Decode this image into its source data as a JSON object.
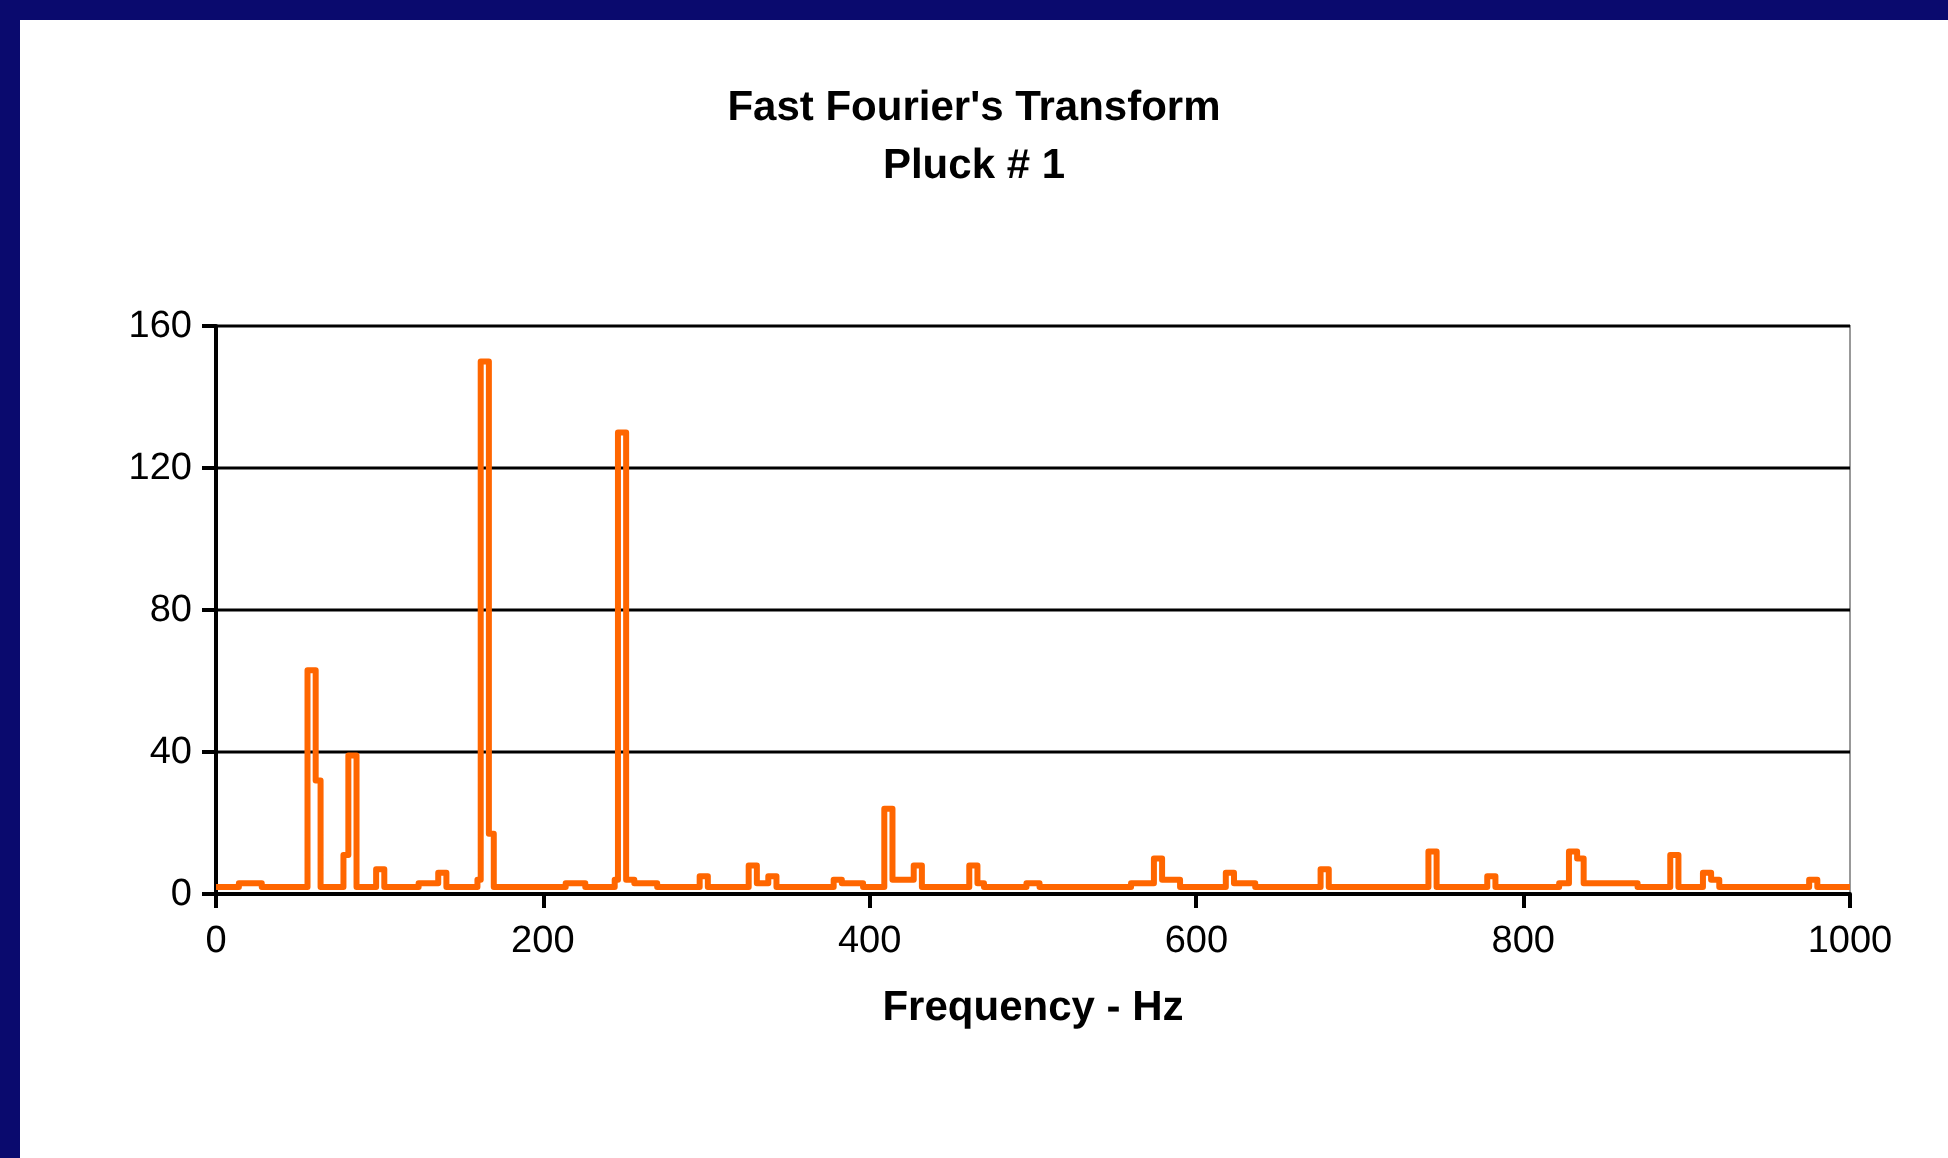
{
  "chart_data": {
    "type": "step",
    "title": "Fast Fourier's Transform",
    "subtitle": "Pluck # 1",
    "xlabel": "Frequency - Hz",
    "x": [
      0,
      14,
      28,
      56,
      61,
      64,
      78,
      81,
      86,
      98,
      103,
      124,
      136,
      141,
      160,
      162,
      167,
      170,
      214,
      226,
      244,
      246,
      251,
      256,
      270,
      296,
      301,
      326,
      331,
      338,
      343,
      378,
      383,
      396,
      409,
      414,
      427,
      432,
      461,
      466,
      470,
      496,
      504,
      560,
      574,
      579,
      590,
      618,
      623,
      636,
      676,
      681,
      742,
      747,
      778,
      783,
      822,
      828,
      833,
      837,
      870,
      890,
      895,
      910,
      915,
      920,
      975,
      980,
      1000
    ],
    "series": [
      {
        "color": "#ff6600",
        "values": [
          2,
          3,
          2,
          63,
          32,
          2,
          11,
          39,
          2,
          7,
          2,
          3,
          6,
          2,
          4,
          150,
          17,
          2,
          3,
          2,
          4,
          130,
          4,
          3,
          2,
          5,
          2,
          8,
          3,
          5,
          2,
          4,
          3,
          2,
          24,
          4,
          8,
          2,
          8,
          3,
          2,
          3,
          2,
          3,
          10,
          4,
          2,
          6,
          3,
          2,
          7,
          2,
          12,
          2,
          5,
          2,
          3,
          12,
          10,
          3,
          2,
          11,
          2,
          6,
          4,
          2,
          4,
          2,
          2
        ]
      }
    ],
    "xlim": [
      0,
      1000
    ],
    "xticks": [
      0,
      200,
      400,
      600,
      800,
      1000
    ],
    "ylim": [
      0,
      160
    ],
    "yticks": [
      0,
      40,
      80,
      120,
      160
    ],
    "grid": "y",
    "marker": "none",
    "line_style": "solid"
  }
}
